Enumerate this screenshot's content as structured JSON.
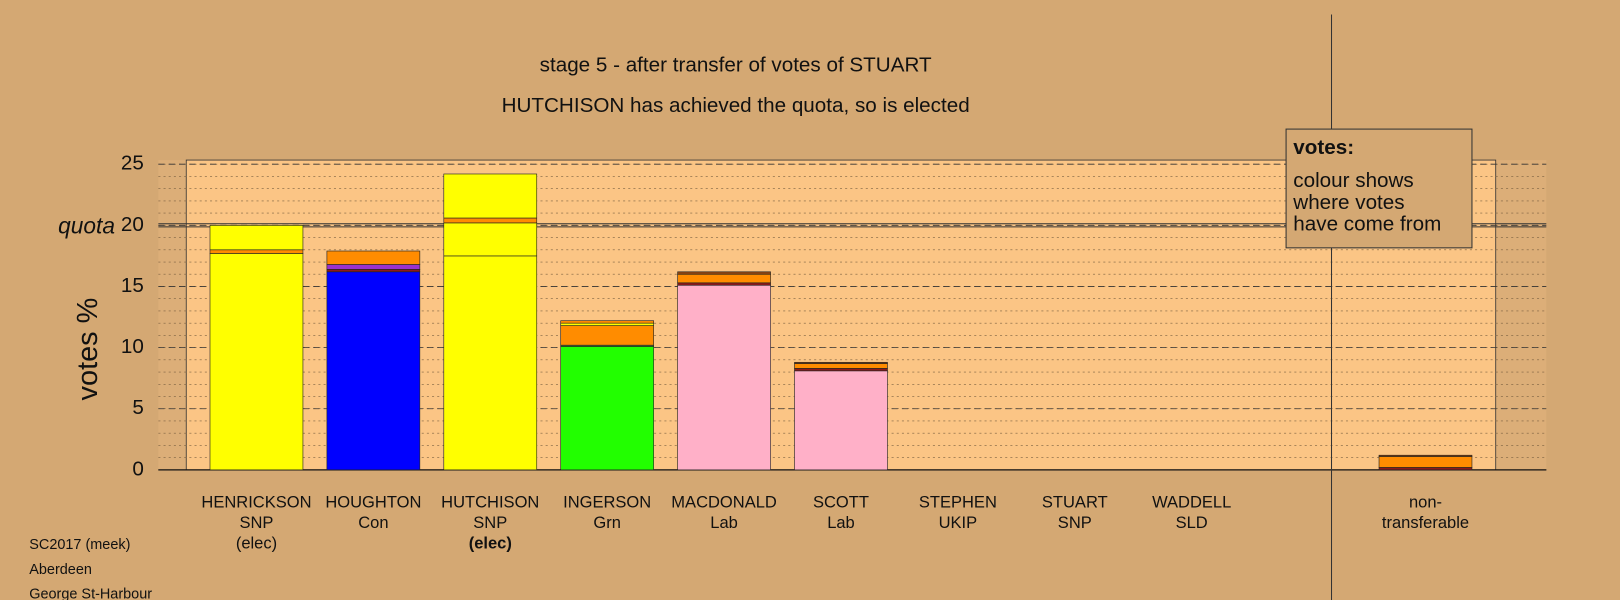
{
  "chart_data": {
    "type": "stacked-bar",
    "title": "stage 5 - after transfer of votes of STUART",
    "subtitle": "HUTCHISON has achieved the quota, so is elected",
    "y_label": "votes %",
    "quota_label": "quota",
    "quota": 20,
    "ylim": [
      0,
      25
    ],
    "yticks": [
      0,
      5,
      10,
      15,
      20,
      25
    ],
    "grid": true,
    "minor_grid_step": 1,
    "bars": [
      {
        "label": [
          "HENRICKSON",
          "SNP",
          "(elec)"
        ],
        "elected_now": false,
        "segments": [
          {
            "color": "#ffff00",
            "value": 17.7
          },
          {
            "color": "#ff8c00",
            "value": 0.3
          },
          {
            "color": "#ffff00",
            "value": 2.0
          }
        ]
      },
      {
        "label": [
          "HOUGHTON",
          "Con"
        ],
        "elected_now": false,
        "segments": [
          {
            "color": "#0000ff",
            "value": 16.2
          },
          {
            "color": "#8b1a1a",
            "value": 0.2
          },
          {
            "color": "#9932cc",
            "value": 0.4
          },
          {
            "color": "#ff8c00",
            "value": 1.1
          }
        ]
      },
      {
        "label": [
          "HUTCHISON",
          "SNP",
          "(elec)"
        ],
        "elected_now": true,
        "segments": [
          {
            "color": "#ffff00",
            "value": 17.5
          },
          {
            "color": "#ffff00",
            "value": 2.7
          },
          {
            "color": "#ff8c00",
            "value": 0.4
          },
          {
            "color": "#ffff00",
            "value": 3.6
          }
        ]
      },
      {
        "label": [
          "INGERSON",
          "Grn"
        ],
        "elected_now": false,
        "segments": [
          {
            "color": "#22ff00",
            "value": 10.1
          },
          {
            "color": "#556b2f",
            "value": 0.1
          },
          {
            "color": "#ff8c00",
            "value": 1.6
          },
          {
            "color": "#ffff00",
            "value": 0.2
          },
          {
            "color": "#ff8c00",
            "value": 0.2
          }
        ]
      },
      {
        "label": [
          "MACDONALD",
          "Lab"
        ],
        "elected_now": false,
        "segments": [
          {
            "color": "#ffb0c8",
            "value": 15.1
          },
          {
            "color": "#8b1a1a",
            "value": 0.2
          },
          {
            "color": "#ff8c00",
            "value": 0.7
          },
          {
            "color": "#8b4513",
            "value": 0.2
          }
        ]
      },
      {
        "label": [
          "SCOTT",
          "Lab"
        ],
        "elected_now": false,
        "segments": [
          {
            "color": "#ffb0c8",
            "value": 8.1
          },
          {
            "color": "#8b1a1a",
            "value": 0.2
          },
          {
            "color": "#ff8c00",
            "value": 0.4
          },
          {
            "color": "#8b4513",
            "value": 0.1
          }
        ]
      },
      {
        "label": [
          "STEPHEN",
          "UKIP"
        ],
        "elected_now": false,
        "segments": []
      },
      {
        "label": [
          "STUART",
          "SNP"
        ],
        "elected_now": false,
        "segments": []
      },
      {
        "label": [
          "WADDELL",
          "SLD"
        ],
        "elected_now": false,
        "segments": []
      }
    ],
    "nontransferable": {
      "label": [
        "non-",
        "transferable"
      ],
      "elected_now": false,
      "segments": [
        {
          "color": "#8b1a1a",
          "value": 0.2
        },
        {
          "color": "#ff8c00",
          "value": 0.9
        },
        {
          "color": "#8b4513",
          "value": 0.1
        }
      ]
    },
    "legend": {
      "title": "votes:",
      "lines": [
        "colour shows",
        "where votes",
        "have come from"
      ]
    },
    "footer": [
      "SC2017 (meek)",
      "Aberdeen",
      "George St-Harbour"
    ]
  }
}
